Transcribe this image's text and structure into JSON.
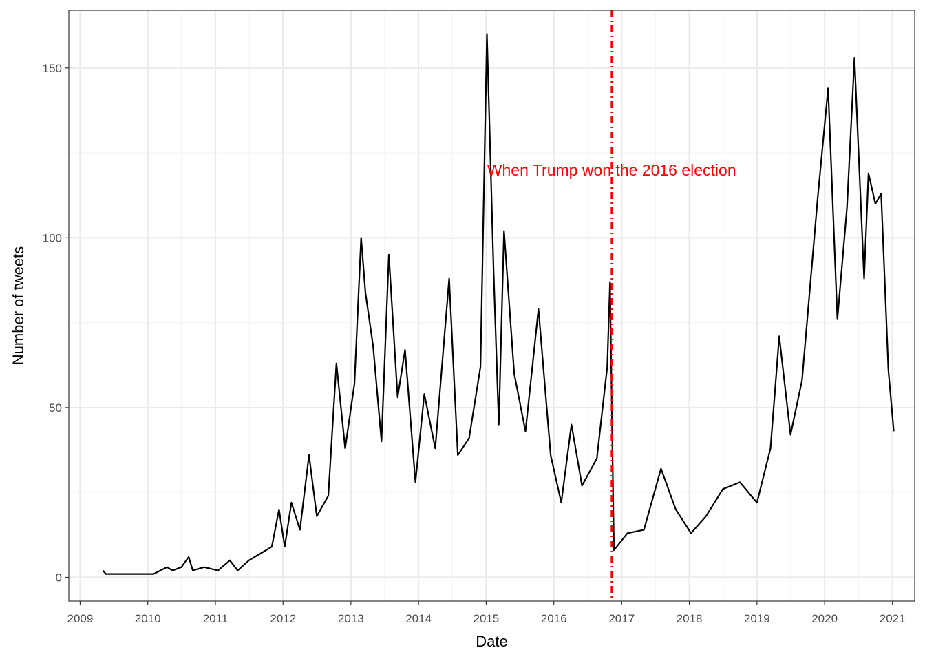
{
  "chart_data": {
    "type": "line",
    "xlabel": "Date",
    "ylabel": "Number of tweets",
    "xlim": [
      "2008-11-01",
      "2021-05-01"
    ],
    "ylim": [
      -7,
      167
    ],
    "x_ticks": [
      "2009",
      "2010",
      "2011",
      "2012",
      "2013",
      "2014",
      "2015",
      "2016",
      "2017",
      "2018",
      "2019",
      "2020",
      "2021"
    ],
    "y_ticks": [
      0,
      50,
      100,
      150
    ],
    "grid": true,
    "legend": "none",
    "series": [
      {
        "color": "#000000",
        "points": [
          [
            "2009-05-04",
            2
          ],
          [
            "2009-05-20",
            1
          ],
          [
            "2009-08-01",
            1
          ],
          [
            "2009-11-01",
            1
          ],
          [
            "2010-02-01",
            1
          ],
          [
            "2010-04-15",
            3
          ],
          [
            "2010-05-15",
            2
          ],
          [
            "2010-07-01",
            3
          ],
          [
            "2010-08-10",
            6
          ],
          [
            "2010-09-01",
            2
          ],
          [
            "2010-11-01",
            3
          ],
          [
            "2011-01-15",
            2
          ],
          [
            "2011-03-20",
            5
          ],
          [
            "2011-05-01",
            2
          ],
          [
            "2011-07-01",
            5
          ],
          [
            "2011-09-01",
            7
          ],
          [
            "2011-11-01",
            9
          ],
          [
            "2011-12-10",
            20
          ],
          [
            "2012-01-10",
            9
          ],
          [
            "2012-02-15",
            22
          ],
          [
            "2012-04-01",
            14
          ],
          [
            "2012-05-20",
            36
          ],
          [
            "2012-07-01",
            18
          ],
          [
            "2012-09-01",
            24
          ],
          [
            "2012-10-15",
            63
          ],
          [
            "2012-12-01",
            38
          ],
          [
            "2013-01-20",
            57
          ],
          [
            "2013-02-25",
            100
          ],
          [
            "2013-03-20",
            84
          ],
          [
            "2013-05-01",
            68
          ],
          [
            "2013-06-15",
            40
          ],
          [
            "2013-07-25",
            95
          ],
          [
            "2013-09-10",
            53
          ],
          [
            "2013-10-20",
            67
          ],
          [
            "2013-12-15",
            28
          ],
          [
            "2014-02-01",
            54
          ],
          [
            "2014-04-01",
            38
          ],
          [
            "2014-06-15",
            88
          ],
          [
            "2014-08-01",
            36
          ],
          [
            "2014-10-01",
            41
          ],
          [
            "2014-12-01",
            62
          ],
          [
            "2015-01-05",
            160
          ],
          [
            "2015-02-10",
            90
          ],
          [
            "2015-03-10",
            45
          ],
          [
            "2015-04-07",
            102
          ],
          [
            "2015-06-01",
            60
          ],
          [
            "2015-08-01",
            43
          ],
          [
            "2015-10-10",
            79
          ],
          [
            "2015-12-15",
            36
          ],
          [
            "2016-02-10",
            22
          ],
          [
            "2016-04-05",
            45
          ],
          [
            "2016-06-01",
            27
          ],
          [
            "2016-08-20",
            35
          ],
          [
            "2016-10-15",
            62
          ],
          [
            "2016-10-30",
            87
          ],
          [
            "2016-11-20",
            8
          ],
          [
            "2017-02-01",
            13
          ],
          [
            "2017-05-01",
            14
          ],
          [
            "2017-08-01",
            32
          ],
          [
            "2017-10-20",
            20
          ],
          [
            "2018-01-10",
            13
          ],
          [
            "2018-04-01",
            18
          ],
          [
            "2018-07-01",
            26
          ],
          [
            "2018-10-01",
            28
          ],
          [
            "2019-01-01",
            22
          ],
          [
            "2019-03-15",
            38
          ],
          [
            "2019-05-01",
            71
          ],
          [
            "2019-07-01",
            42
          ],
          [
            "2019-09-01",
            58
          ],
          [
            "2019-11-25",
            112
          ],
          [
            "2020-01-20",
            144
          ],
          [
            "2020-03-10",
            76
          ],
          [
            "2020-05-01",
            109
          ],
          [
            "2020-06-10",
            153
          ],
          [
            "2020-08-01",
            88
          ],
          [
            "2020-08-25",
            119
          ],
          [
            "2020-10-01",
            110
          ],
          [
            "2020-11-01",
            113
          ],
          [
            "2020-12-10",
            61
          ],
          [
            "2021-01-08",
            43
          ]
        ]
      }
    ],
    "annotations": [
      {
        "type": "vline",
        "x": "2016-11-08",
        "color": "#ff0000",
        "style": "dotdash"
      },
      {
        "type": "text",
        "x": "2016-11-08",
        "y": 120,
        "label": "When Trump won the 2016 election",
        "color": "#ff0000"
      }
    ]
  }
}
